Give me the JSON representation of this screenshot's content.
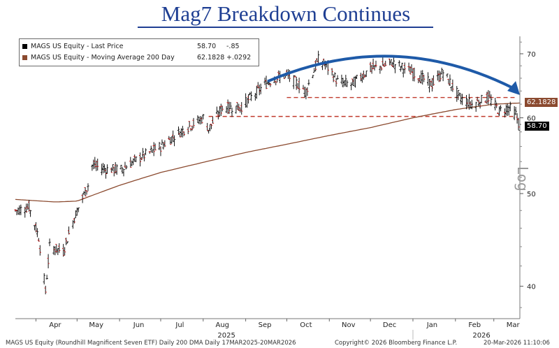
{
  "title": "Mag7 Breakdown Continues",
  "legend": [
    {
      "name": "MAGS US Equity - Last Price",
      "value": "58.70",
      "change": "-.85",
      "color": "#000000"
    },
    {
      "name": "MAGS US Equity - Moving Average 200 Day",
      "value": "62.1828",
      "change": "+.0292",
      "color": "#8b4a2f"
    }
  ],
  "tags": {
    "ma_label": "62.1828",
    "price_label": "58.70"
  },
  "scale_label": "Log",
  "footer": {
    "left": "MAGS US Equity (Roundhill Magnificent Seven ETF) Daily 200 DMA Daily 17MAR2025-20MAR2026",
    "center": "Copyright© 2026 Bloomberg Finance L.P.",
    "right": "20-Mar-2026 11:10:06"
  },
  "chart_data": {
    "type": "line",
    "scale": "log",
    "ylim": [
      37,
      73
    ],
    "yticks": [
      40,
      50,
      60,
      70
    ],
    "months": [
      "Apr",
      "May",
      "Jun",
      "Jul",
      "Aug",
      "Sep",
      "Oct",
      "Nov",
      "Dec",
      "Jan",
      "Feb",
      "Mar"
    ],
    "years": [
      "2025",
      "2026"
    ],
    "series": [
      {
        "name": "MAGS US Equity - Last Price",
        "x": [
          "2025-03-17",
          "2025-03-27",
          "2025-04-03",
          "2025-04-08",
          "2025-04-11",
          "2025-04-21",
          "2025-04-29",
          "2025-05-09",
          "2025-05-12",
          "2025-05-23",
          "2025-06-02",
          "2025-06-16",
          "2025-07-01",
          "2025-07-15",
          "2025-08-01",
          "2025-08-05",
          "2025-08-15",
          "2025-08-28",
          "2025-09-15",
          "2025-09-22",
          "2025-10-01",
          "2025-10-15",
          "2025-10-24",
          "2025-10-30",
          "2025-11-07",
          "2025-11-17",
          "2025-12-01",
          "2025-12-10",
          "2025-12-17",
          "2025-12-31",
          "2026-01-15",
          "2026-01-23",
          "2026-02-04",
          "2026-02-13",
          "2026-02-25",
          "2026-03-05",
          "2026-03-12",
          "2026-03-17",
          "2026-03-20"
        ],
        "values": [
          48.0,
          48.4,
          45.0,
          39.5,
          44.0,
          43.5,
          47.2,
          51.0,
          53.5,
          53.0,
          53.0,
          54.5,
          56.0,
          58.0,
          60.0,
          58.4,
          61.5,
          61.5,
          65.0,
          66.0,
          66.5,
          64.0,
          69.0,
          68.0,
          65.5,
          65.0,
          67.5,
          68.0,
          68.5,
          67.0,
          65.0,
          67.0,
          63.0,
          62.0,
          63.0,
          61.0,
          61.5,
          60.5,
          58.7
        ]
      },
      {
        "name": "MAGS US Equity - Moving Average 200 Day",
        "x": [
          "2025-03-17",
          "2025-04-15",
          "2025-05-01",
          "2025-06-01",
          "2025-07-01",
          "2025-08-01",
          "2025-09-01",
          "2025-10-01",
          "2025-11-01",
          "2025-12-01",
          "2026-01-01",
          "2026-02-01",
          "2026-03-01",
          "2026-03-20"
        ],
        "values": [
          49.3,
          49.0,
          49.1,
          51.0,
          52.6,
          53.9,
          55.2,
          56.3,
          57.5,
          58.6,
          60.0,
          61.2,
          62.0,
          62.18
        ]
      }
    ],
    "reference_lines": [
      63.0,
      60.2
    ]
  }
}
